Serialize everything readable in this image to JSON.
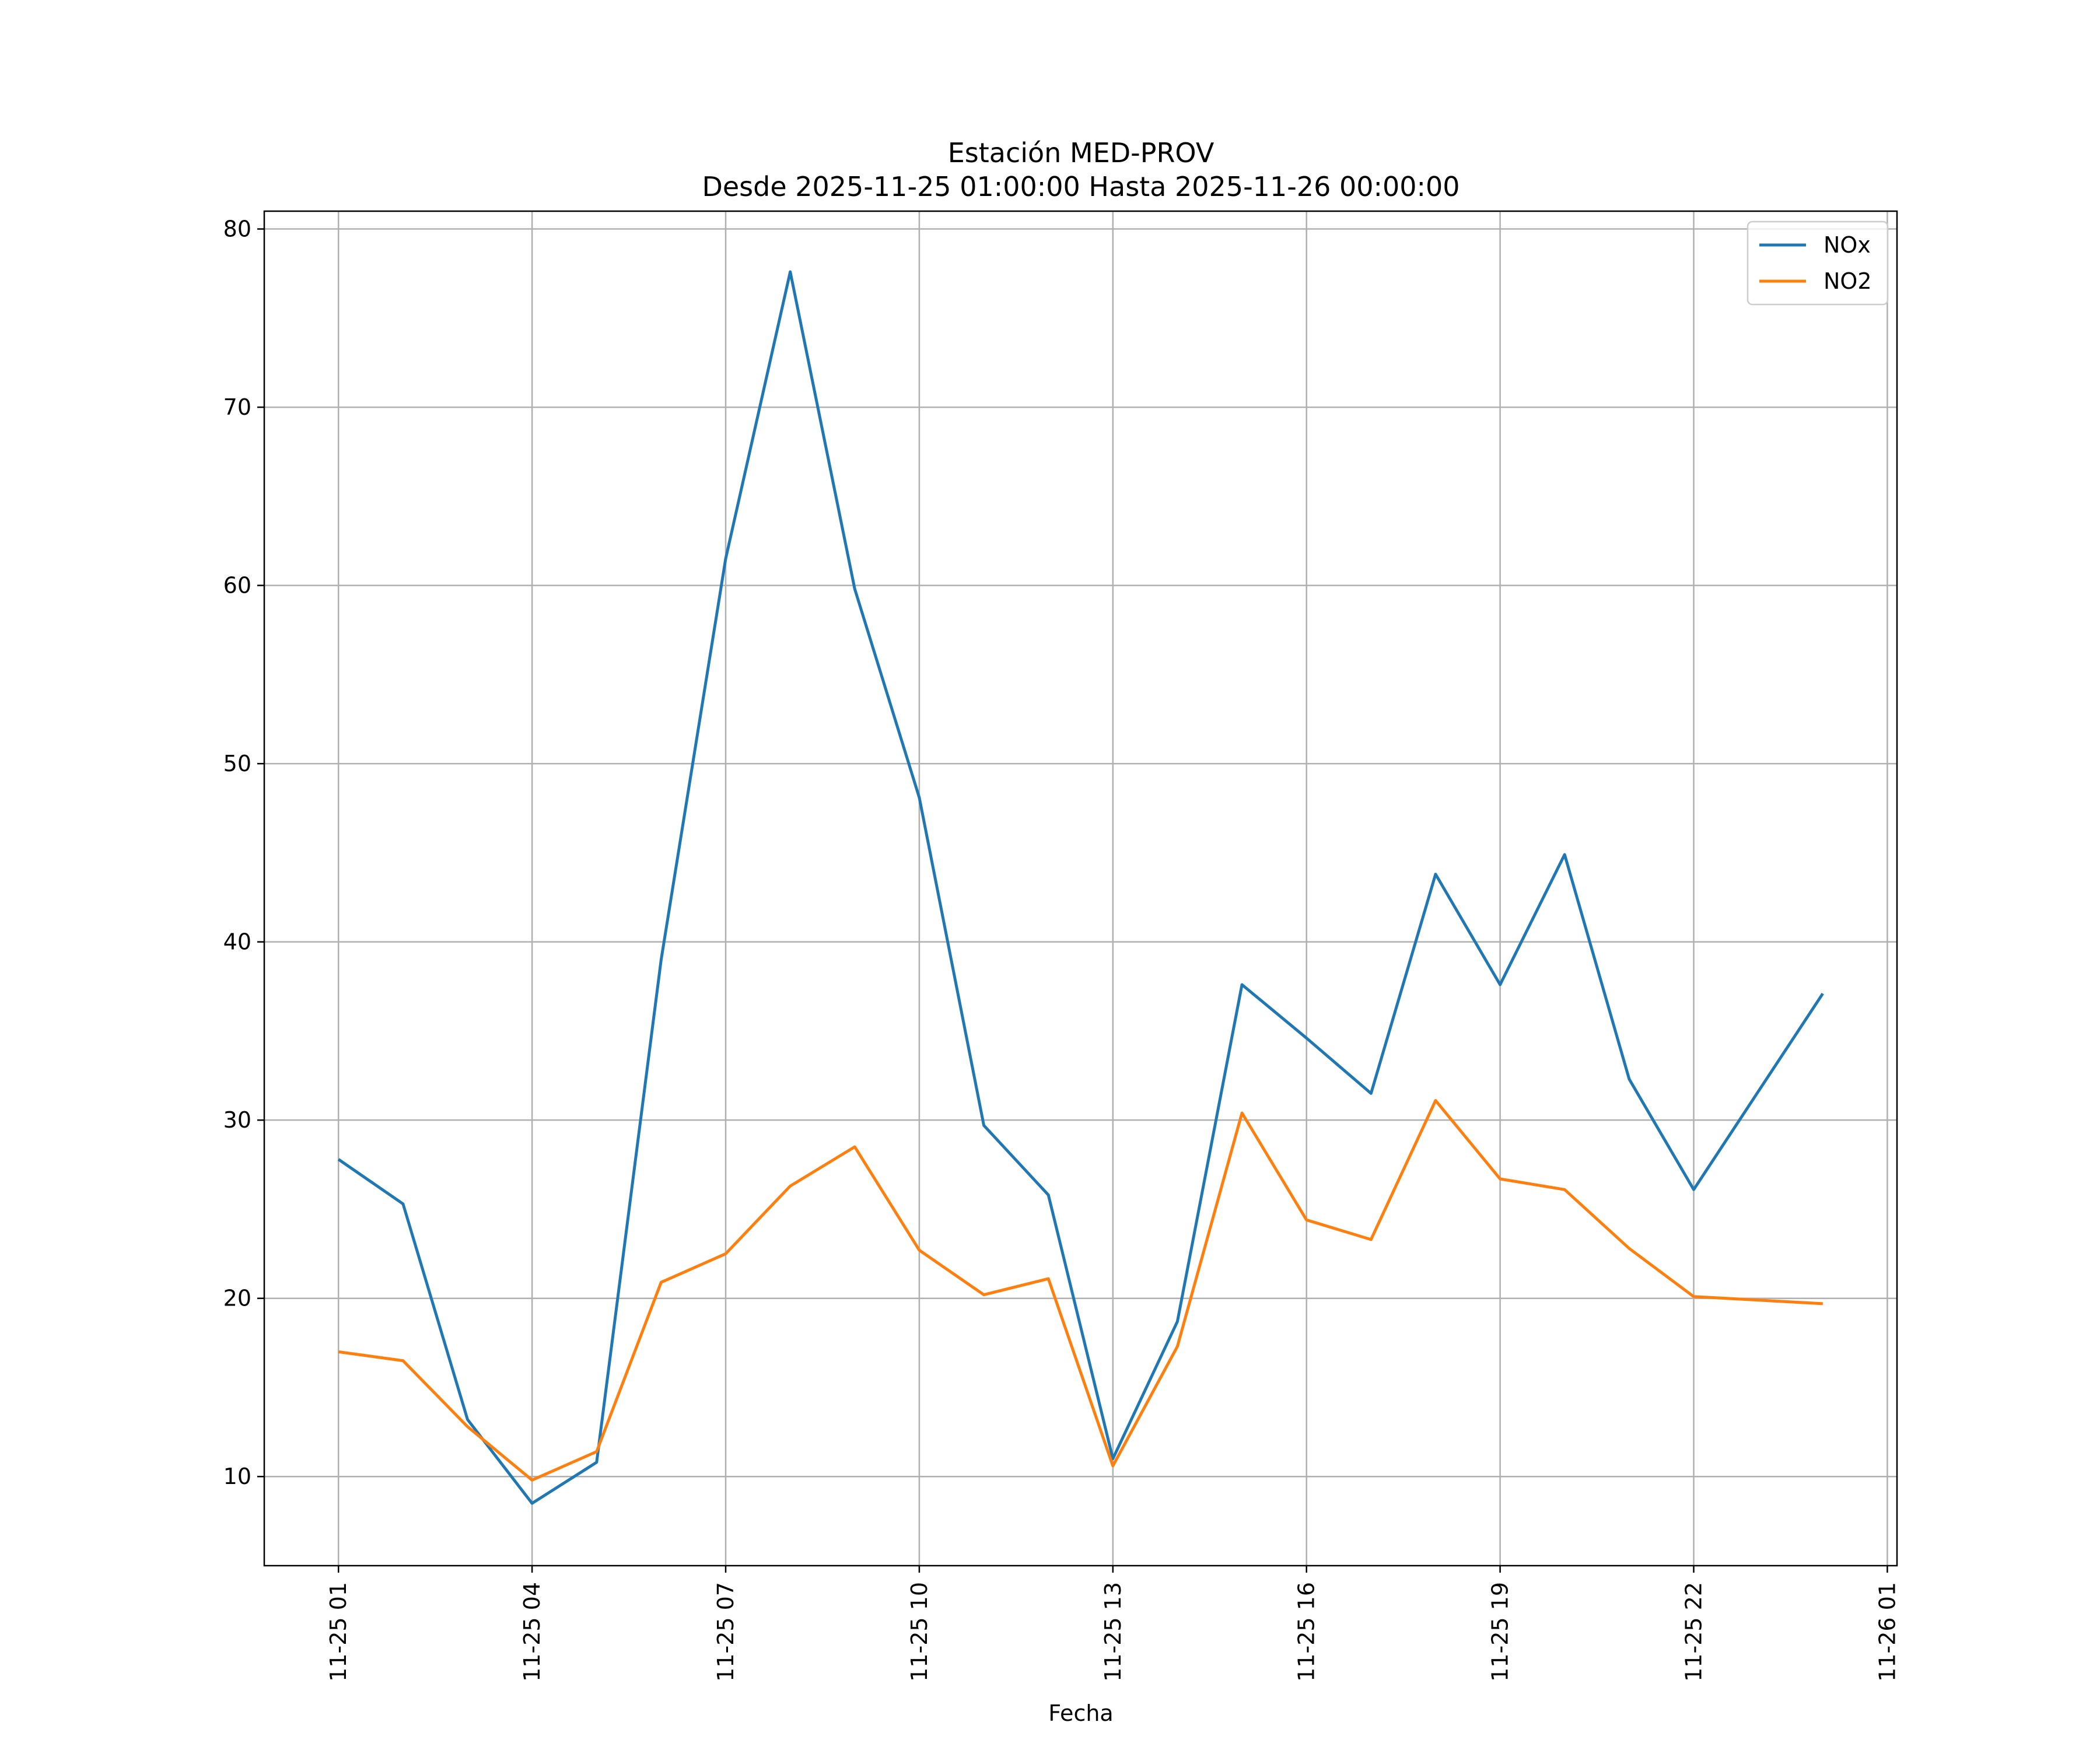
{
  "chart_data": {
    "type": "line",
    "title": "Estación MED-PROV",
    "subtitle": "Desde 2025-11-25 01:00:00 Hasta 2025-11-26 00:00:00",
    "xlabel": "Fecha",
    "ylabel": "",
    "x": [
      "2025-11-25 01:00",
      "2025-11-25 02:00",
      "2025-11-25 03:00",
      "2025-11-25 04:00",
      "2025-11-25 05:00",
      "2025-11-25 06:00",
      "2025-11-25 07:00",
      "2025-11-25 08:00",
      "2025-11-25 09:00",
      "2025-11-25 10:00",
      "2025-11-25 11:00",
      "2025-11-25 12:00",
      "2025-11-25 13:00",
      "2025-11-25 14:00",
      "2025-11-25 15:00",
      "2025-11-25 16:00",
      "2025-11-25 17:00",
      "2025-11-25 18:00",
      "2025-11-25 19:00",
      "2025-11-25 20:00",
      "2025-11-25 21:00",
      "2025-11-25 22:00",
      "2025-11-25 23:00",
      "2025-11-26 00:00"
    ],
    "series": [
      {
        "name": "NOx",
        "color": "#1f77b4",
        "values": [
          27.8,
          25.3,
          13.2,
          8.5,
          10.8,
          39.0,
          61.5,
          77.6,
          59.8,
          48.1,
          29.7,
          25.8,
          11.0,
          18.7,
          37.6,
          34.6,
          31.5,
          43.8,
          37.6,
          44.9,
          32.3,
          26.1,
          31.6,
          37.1
        ]
      },
      {
        "name": "NO2",
        "color": "#ff7f0e",
        "values": [
          17.0,
          16.5,
          12.8,
          9.8,
          11.4,
          20.9,
          22.5,
          26.3,
          28.5,
          22.7,
          20.2,
          21.1,
          10.6,
          17.3,
          30.4,
          24.4,
          23.3,
          31.1,
          26.7,
          26.1,
          22.8,
          20.1,
          19.9,
          19.7
        ]
      }
    ],
    "x_ticks": [
      "11-25 01",
      "11-25 04",
      "11-25 07",
      "11-25 10",
      "11-25 13",
      "11-25 16",
      "11-25 19",
      "11-25 22",
      "11-26 01"
    ],
    "y_ticks": [
      10,
      20,
      30,
      40,
      50,
      60,
      70,
      80
    ],
    "xlim": [
      "2025-11-24 23:51",
      "2025-11-26 01:09"
    ],
    "ylim": [
      5,
      81
    ],
    "grid": true,
    "legend_position": "top-right"
  }
}
